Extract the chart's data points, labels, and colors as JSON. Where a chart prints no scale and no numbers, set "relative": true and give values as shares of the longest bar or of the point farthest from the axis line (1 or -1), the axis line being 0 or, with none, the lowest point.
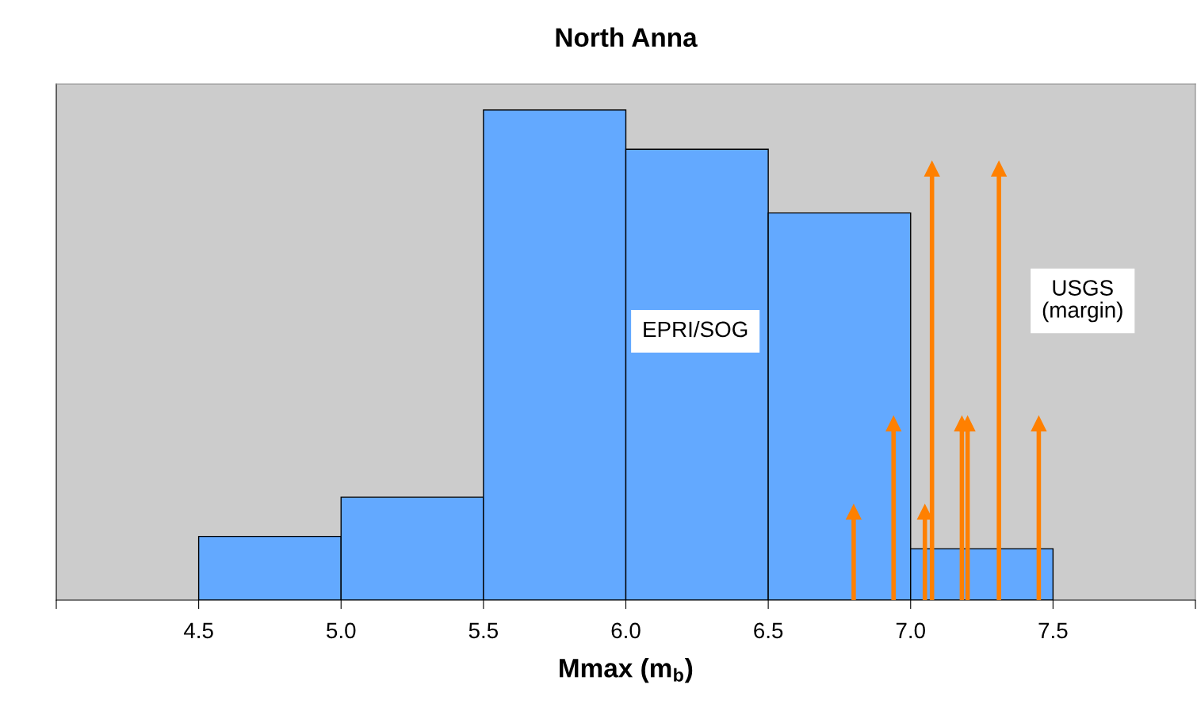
{
  "chart_data": {
    "type": "histogram",
    "title": "North Anna",
    "xlabel": "Mmax (m$_{b}$)",
    "relative": true,
    "bins": [
      4.5,
      5.0,
      5.5,
      6.0,
      6.5,
      7.0,
      7.5
    ],
    "values": [
      0.13,
      0.21,
      1,
      0.92,
      0.79,
      0.105
    ],
    "color": "#63a9ff",
    "series": [
      {
        "type": "lollipop",
        "x": [
          6.8,
          6.94,
          7.05,
          7.075,
          7.18,
          7.2,
          7.31,
          7.45
        ],
        "values": [
          0.18,
          0.36,
          0.18,
          0.88,
          0.36,
          0.36,
          0.88,
          0.36
        ],
        "color": "#ff8000",
        "marker": "triangle"
      }
    ],
    "xlim": [
      4.0,
      8.0
    ],
    "xticks": [
      {
        "value": 4.0,
        "label": null
      },
      {
        "value": 4.5,
        "label": "4.5"
      },
      {
        "value": 5.0,
        "label": "5.0"
      },
      {
        "value": 5.5,
        "label": "5.5"
      },
      {
        "value": 6.0,
        "label": "6.0"
      },
      {
        "value": 6.5,
        "label": "6.5"
      },
      {
        "value": 7.0,
        "label": "7.0"
      },
      {
        "value": 7.5,
        "label": "7.5"
      },
      {
        "value": 8.0,
        "label": null
      }
    ],
    "grid": false,
    "legend": false,
    "annotations": [
      "EPRI/SOG",
      "USGS\n(margin)"
    ]
  }
}
